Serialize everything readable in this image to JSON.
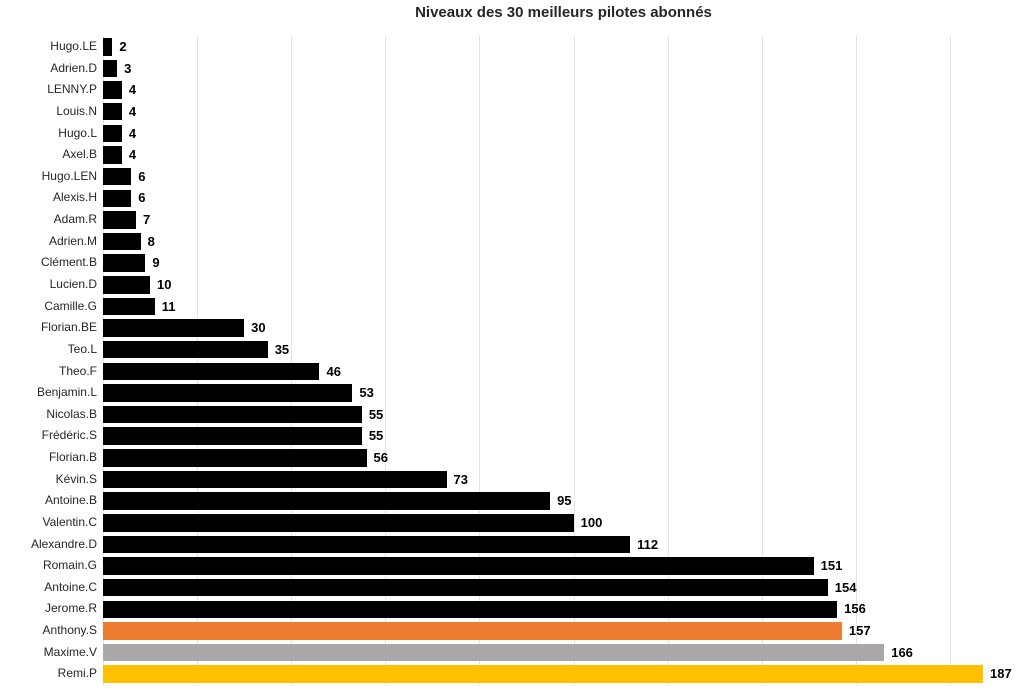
{
  "chart_data": {
    "type": "bar",
    "orientation": "horizontal",
    "title": "Niveaux des 30 meilleurs pilotes abonnés",
    "categories": [
      "Hugo.LE",
      "Adrien.D",
      "LENNY.P",
      "Louis.N",
      "Hugo.L",
      "Axel.B",
      "Hugo.LEN",
      "Alexis.H",
      "Adam.R",
      "Adrien.M",
      "Clément.B",
      "Lucien.D",
      "Camille.G",
      "Florian.BE",
      "Teo.L",
      "Theo.F",
      "Benjamin.L",
      "Nicolas.B",
      "Frédéric.S",
      "Florian.B",
      "Kévin.S",
      "Antoine.B",
      "Valentin.C",
      "Alexandre.D",
      "Romain.G",
      "Antoine.C",
      "Jerome.R",
      "Anthony.S",
      "Maxime.V",
      "Remi.P"
    ],
    "values": [
      2,
      3,
      4,
      4,
      4,
      4,
      6,
      6,
      7,
      8,
      9,
      10,
      11,
      30,
      35,
      46,
      53,
      55,
      55,
      56,
      73,
      95,
      100,
      112,
      151,
      154,
      156,
      157,
      166,
      187
    ],
    "bar_colors": [
      "#000000",
      "#000000",
      "#000000",
      "#000000",
      "#000000",
      "#000000",
      "#000000",
      "#000000",
      "#000000",
      "#000000",
      "#000000",
      "#000000",
      "#000000",
      "#000000",
      "#000000",
      "#000000",
      "#000000",
      "#000000",
      "#000000",
      "#000000",
      "#000000",
      "#000000",
      "#000000",
      "#000000",
      "#000000",
      "#000000",
      "#000000",
      "#ED7D31",
      "#AAA8A8",
      "#FFC000"
    ],
    "xlabel": "",
    "ylabel": "",
    "xlim": [
      0,
      195.7
    ],
    "gridline_interval": 20,
    "gridline_max": 180,
    "grid": "vertical",
    "legend": "none",
    "value_labels": "outside-end",
    "colors": {
      "default_bar": "#000000",
      "highlight_orange": "#ED7D31",
      "highlight_gray": "#AAA8A8",
      "highlight_gold": "#FFC000",
      "gridline": "#e3e3e3",
      "title_text": "#262626",
      "label_text": "#262626",
      "value_text": "#000000",
      "background": "#ffffff"
    }
  }
}
